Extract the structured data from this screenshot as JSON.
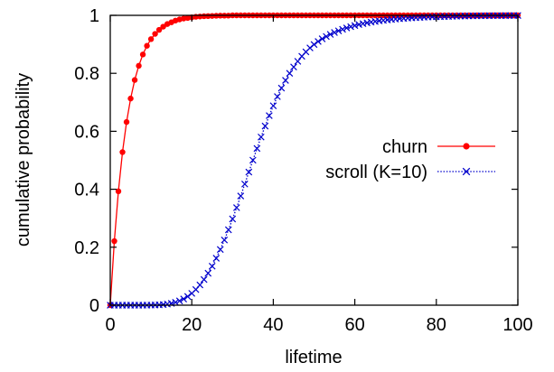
{
  "chart_data": {
    "type": "line",
    "xlabel": "lifetime",
    "ylabel": "cumulative probability",
    "xlim": [
      0,
      100
    ],
    "ylim": [
      0,
      1
    ],
    "xticks": [
      "0",
      "20",
      "40",
      "60",
      "80",
      "100"
    ],
    "yticks": [
      "0",
      "0.2",
      "0.4",
      "0.6",
      "0.8",
      "1"
    ],
    "grid": false,
    "legend_position": "center-right",
    "series": [
      {
        "name": "churn",
        "color": "#ff0000",
        "marker": "filled-circle",
        "line_style": "solid",
        "x": [
          0,
          1,
          2,
          3,
          4,
          5,
          6,
          7,
          8,
          9,
          10,
          11,
          12,
          13,
          14,
          15,
          16,
          17,
          18,
          19,
          20,
          21,
          22,
          23,
          24,
          25,
          26,
          27,
          28,
          29,
          30,
          31,
          32,
          33,
          34,
          35,
          36,
          37,
          38,
          39,
          40,
          41,
          42,
          43,
          44,
          45,
          46,
          47,
          48,
          49,
          50,
          51,
          52,
          53,
          54,
          55,
          56,
          57,
          58,
          59,
          60,
          61,
          62,
          63,
          64,
          65,
          66,
          67,
          68,
          69,
          70,
          71,
          72,
          73,
          74,
          75,
          76,
          77,
          78,
          79,
          80,
          81,
          82,
          83,
          84,
          85,
          86,
          87,
          88,
          89,
          90,
          91,
          92,
          93,
          94,
          95,
          96,
          97,
          98,
          99,
          100
        ],
        "y": [
          0.0,
          0.221,
          0.393,
          0.528,
          0.632,
          0.713,
          0.777,
          0.826,
          0.865,
          0.895,
          0.918,
          0.936,
          0.95,
          0.961,
          0.97,
          0.976,
          0.982,
          0.986,
          0.989,
          0.991,
          0.993,
          0.995,
          0.996,
          0.997,
          0.9975,
          0.998,
          0.9985,
          0.999,
          0.999,
          0.999,
          1.0,
          1.0,
          1.0,
          1.0,
          1.0,
          1.0,
          1.0,
          1.0,
          1.0,
          1.0,
          1.0,
          1.0,
          1.0,
          1.0,
          1.0,
          1.0,
          1.0,
          1.0,
          1.0,
          1.0,
          1.0,
          1.0,
          1.0,
          1.0,
          1.0,
          1.0,
          1.0,
          1.0,
          1.0,
          1.0,
          1.0,
          1.0,
          1.0,
          1.0,
          1.0,
          1.0,
          1.0,
          1.0,
          1.0,
          1.0,
          1.0,
          1.0,
          1.0,
          1.0,
          1.0,
          1.0,
          1.0,
          1.0,
          1.0,
          1.0,
          1.0,
          1.0,
          1.0,
          1.0,
          1.0,
          1.0,
          1.0,
          1.0,
          1.0,
          1.0,
          1.0,
          1.0,
          1.0,
          1.0,
          1.0,
          1.0,
          1.0,
          1.0,
          1.0,
          1.0,
          1.0
        ]
      },
      {
        "name": "scroll (K=10)",
        "color": "#0000cc",
        "marker": "x",
        "line_style": "dotted",
        "x": [
          0,
          1,
          2,
          3,
          4,
          5,
          6,
          7,
          8,
          9,
          10,
          11,
          12,
          13,
          14,
          15,
          16,
          17,
          18,
          19,
          20,
          21,
          22,
          23,
          24,
          25,
          26,
          27,
          28,
          29,
          30,
          31,
          32,
          33,
          34,
          35,
          36,
          37,
          38,
          39,
          40,
          41,
          42,
          43,
          44,
          45,
          46,
          47,
          48,
          49,
          50,
          51,
          52,
          53,
          54,
          55,
          56,
          57,
          58,
          59,
          60,
          61,
          62,
          63,
          64,
          65,
          66,
          67,
          68,
          69,
          70,
          71,
          72,
          73,
          74,
          75,
          76,
          77,
          78,
          79,
          80,
          81,
          82,
          83,
          84,
          85,
          86,
          87,
          88,
          89,
          90,
          91,
          92,
          93,
          94,
          95,
          96,
          97,
          98,
          99,
          100
        ],
        "y": [
          0.0,
          0.0,
          0.0,
          0.0,
          0.0,
          0.0,
          0.0,
          0.0,
          0.0,
          0.0001,
          0.0003,
          0.0006,
          0.0012,
          0.0022,
          0.0038,
          0.0062,
          0.0098,
          0.0148,
          0.0214,
          0.03,
          0.0408,
          0.054,
          0.0699,
          0.0886,
          0.1102,
          0.1346,
          0.162,
          0.1922,
          0.2249,
          0.2601,
          0.2975,
          0.3365,
          0.3767,
          0.4179,
          0.4593,
          0.5003,
          0.5407,
          0.5801,
          0.618,
          0.654,
          0.688,
          0.7197,
          0.749,
          0.7757,
          0.8,
          0.8219,
          0.8414,
          0.8588,
          0.8741,
          0.8876,
          0.8994,
          0.9098,
          0.919,
          0.9271,
          0.9343,
          0.9408,
          0.9466,
          0.9519,
          0.9566,
          0.9609,
          0.9648,
          0.9683,
          0.9714,
          0.9742,
          0.9767,
          0.979,
          0.981,
          0.9828,
          0.9844,
          0.9859,
          0.9872,
          0.9884,
          0.9895,
          0.9905,
          0.9914,
          0.9922,
          0.9929,
          0.9936,
          0.9942,
          0.9947,
          0.9952,
          0.9957,
          0.9961,
          0.9965,
          0.9968,
          0.9971,
          0.9974,
          0.9977,
          0.9979,
          0.9981,
          0.9983,
          0.9985,
          0.9987,
          0.9988,
          0.9989,
          0.999,
          0.9991,
          0.9992,
          0.9993,
          0.9994,
          0.9995
        ]
      }
    ]
  }
}
